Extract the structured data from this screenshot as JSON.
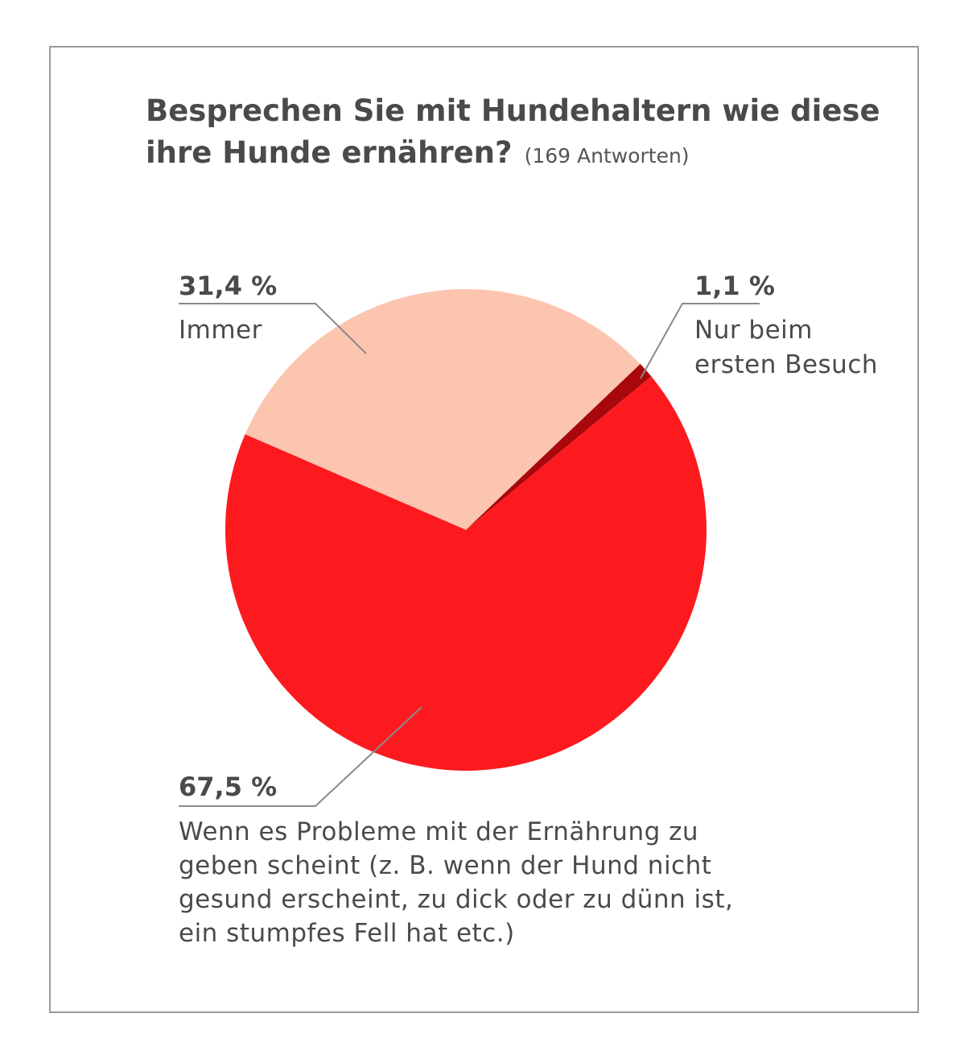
{
  "chart_data": {
    "type": "pie",
    "title_lines": [
      "Besprechen Sie mit Hundehaltern wie diese",
      "ihre Hunde ernähren?"
    ],
    "subtitle": "(169 Antworten)",
    "slices": [
      {
        "label_lines": [
          "Immer"
        ],
        "value_label": "31,4 %",
        "value": 31.4,
        "color": "#fcc5b0"
      },
      {
        "label_lines": [
          "Nur beim",
          "ersten Besuch"
        ],
        "value_label": "1,1 %",
        "value": 1.1,
        "color": "#a8080c"
      },
      {
        "label_lines": [
          "Wenn es Probleme mit der Ernährung zu",
          "geben scheint (z. B. wenn der Hund nicht",
          "gesund erscheint, zu dick oder zu dünn ist,",
          "ein stumpfes Fell hat etc.)"
        ],
        "value_label": "67,5 %",
        "value": 67.5,
        "color": "#fd1a1f"
      }
    ]
  }
}
